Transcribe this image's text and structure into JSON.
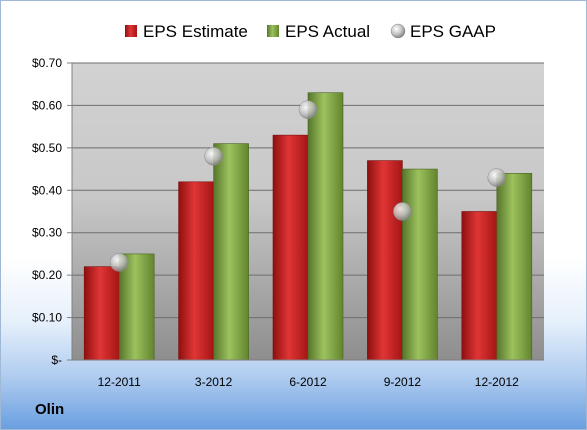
{
  "chart_data": {
    "type": "bar",
    "categories": [
      "12-2011",
      "3-2012",
      "6-2012",
      "9-2012",
      "12-2012"
    ],
    "series": [
      {
        "name": "EPS Estimate",
        "type": "bar",
        "values": [
          0.22,
          0.42,
          0.53,
          0.47,
          0.35
        ],
        "color": "#cc1f1f"
      },
      {
        "name": "EPS Actual",
        "type": "bar",
        "values": [
          0.25,
          0.51,
          0.63,
          0.45,
          0.44
        ],
        "color": "#7fa843"
      },
      {
        "name": "EPS GAAP",
        "type": "marker",
        "values": [
          0.23,
          0.48,
          0.59,
          0.35,
          0.43
        ],
        "color": "#b8b8b8"
      }
    ],
    "ylim": [
      0,
      0.7
    ],
    "yticks": [
      0,
      0.1,
      0.2,
      0.3,
      0.4,
      0.5,
      0.6,
      0.7
    ],
    "ytick_labels": [
      "$-",
      "$0.10",
      "$0.20",
      "$0.30",
      "$0.40",
      "$0.50",
      "$0.60",
      "$0.70"
    ],
    "grid": true,
    "legend_position": "top"
  },
  "company_label": "Olin"
}
